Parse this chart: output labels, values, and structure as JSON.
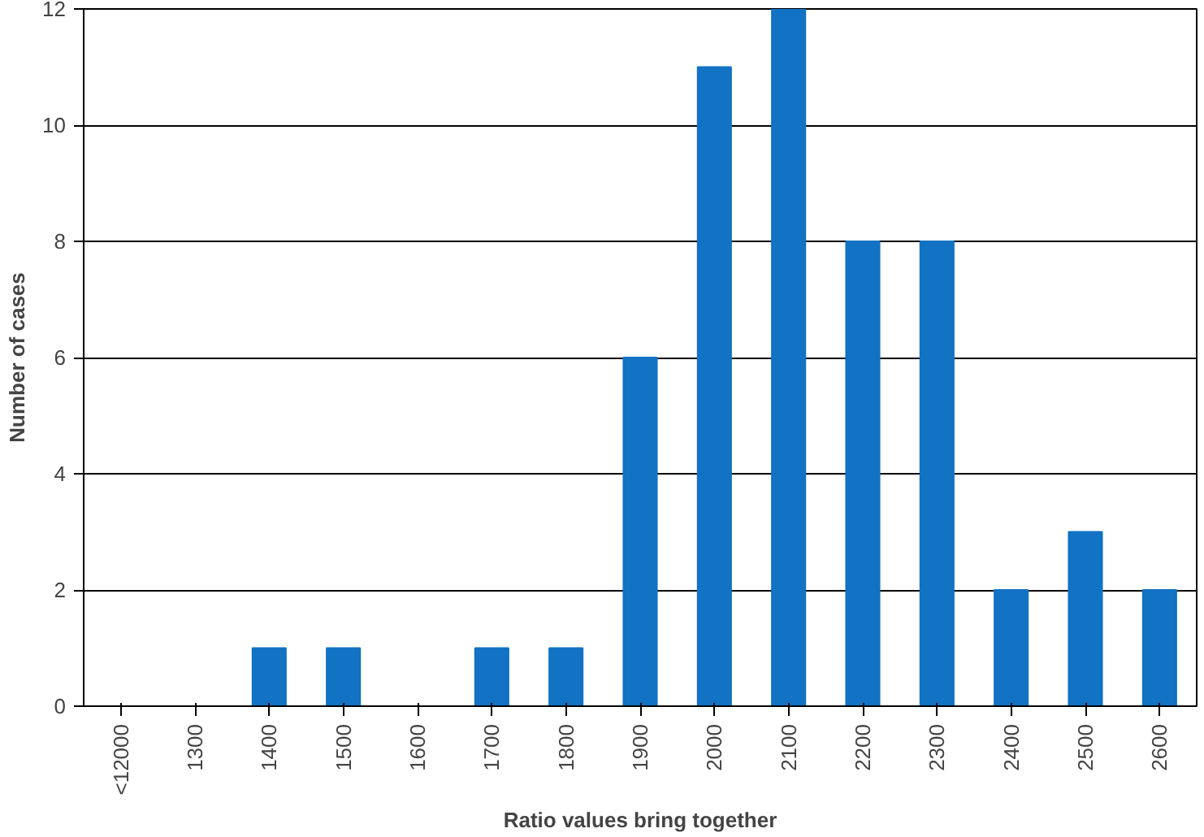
{
  "chart_data": {
    "type": "bar",
    "xlabel": "Ratio values bring together",
    "ylabel": "Number of cases",
    "categories": [
      "<12000",
      "1300",
      "1400",
      "1500",
      "1600",
      "1700",
      "1800",
      "1900",
      "2000",
      "2100",
      "2200",
      "2300",
      "2400",
      "2500",
      "2600"
    ],
    "values": [
      0,
      0,
      1,
      1,
      0,
      1,
      1,
      6,
      11,
      12,
      8,
      8,
      2,
      3,
      2
    ],
    "color": "#1272c4",
    "ylim": [
      0,
      12
    ],
    "yticks": [
      0,
      2,
      4,
      6,
      8,
      10,
      12
    ],
    "grid": "y"
  }
}
